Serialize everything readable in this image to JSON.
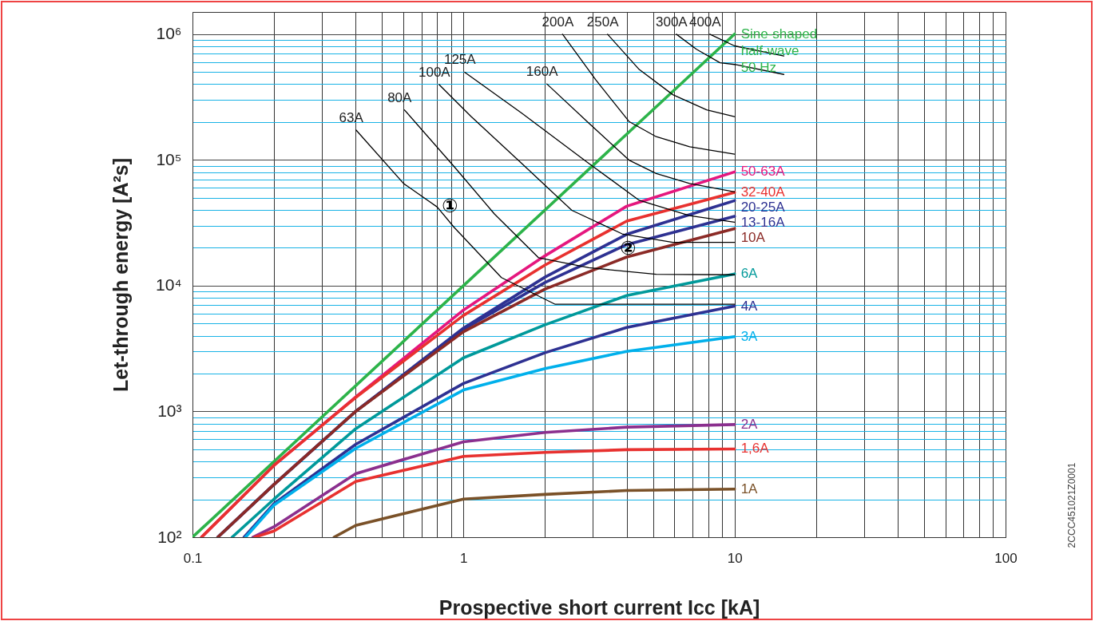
{
  "chart_data": {
    "type": "line",
    "xlabel": "Prospective short current Icc [kA]",
    "ylabel": "Let-through energy [A²s]",
    "log": "xy",
    "grid": true,
    "line_style": "solid",
    "marker": "none",
    "xlim": [
      0.1,
      100
    ],
    "ylim": [
      100,
      1500000
    ],
    "xticks": [
      0.1,
      {
        "value": 0.2,
        "label": null
      },
      {
        "value": 0.3,
        "label": null
      },
      {
        "value": 0.4,
        "label": null
      },
      {
        "value": 0.5,
        "label": null
      },
      {
        "value": 0.6,
        "label": null
      },
      {
        "value": 0.7,
        "label": null
      },
      {
        "value": 0.8,
        "label": null
      },
      {
        "value": 0.9,
        "label": null
      },
      1,
      {
        "value": 2,
        "label": null
      },
      {
        "value": 3,
        "label": null
      },
      {
        "value": 4,
        "label": null
      },
      {
        "value": 5,
        "label": null
      },
      {
        "value": 6,
        "label": null
      },
      {
        "value": 7,
        "label": null
      },
      {
        "value": 8,
        "label": null
      },
      {
        "value": 9,
        "label": null
      },
      10,
      {
        "value": 20,
        "label": null
      },
      {
        "value": 30,
        "label": null
      },
      {
        "value": 40,
        "label": null
      },
      {
        "value": 50,
        "label": null
      },
      {
        "value": 60,
        "label": null
      },
      {
        "value": 70,
        "label": null
      },
      {
        "value": 80,
        "label": null
      },
      {
        "value": 90,
        "label": null
      },
      100
    ],
    "yticks": [
      {
        "value": 100,
        "label": "10²"
      },
      {
        "value": 200,
        "label": null
      },
      {
        "value": 300,
        "label": null
      },
      {
        "value": 400,
        "label": null
      },
      {
        "value": 500,
        "label": null
      },
      {
        "value": 600,
        "label": null
      },
      {
        "value": 700,
        "label": null
      },
      {
        "value": 800,
        "label": null
      },
      {
        "value": 900,
        "label": null
      },
      {
        "value": 1000,
        "label": "10³"
      },
      {
        "value": 2000,
        "label": null
      },
      {
        "value": 3000,
        "label": null
      },
      {
        "value": 4000,
        "label": null
      },
      {
        "value": 5000,
        "label": null
      },
      {
        "value": 6000,
        "label": null
      },
      {
        "value": 7000,
        "label": null
      },
      {
        "value": 8000,
        "label": null
      },
      {
        "value": 9000,
        "label": null
      },
      {
        "value": 10000,
        "label": "10⁴"
      },
      {
        "value": 20000,
        "label": null
      },
      {
        "value": 30000,
        "label": null
      },
      {
        "value": 40000,
        "label": null
      },
      {
        "value": 50000,
        "label": null
      },
      {
        "value": 60000,
        "label": null
      },
      {
        "value": 70000,
        "label": null
      },
      {
        "value": 80000,
        "label": null
      },
      {
        "value": 90000,
        "label": null
      },
      {
        "value": 100000,
        "label": "10⁵"
      },
      {
        "value": 200000,
        "label": null
      },
      {
        "value": 300000,
        "label": null
      },
      {
        "value": 400000,
        "label": null
      },
      {
        "value": 500000,
        "label": null
      },
      {
        "value": 600000,
        "label": null
      },
      {
        "value": 700000,
        "label": null
      },
      {
        "value": 800000,
        "label": null
      },
      {
        "value": 900000,
        "label": null
      },
      {
        "value": 1000000,
        "label": "10⁶"
      }
    ],
    "series": [
      {
        "name": "Sine-shaped\nhalf-wave\n50 Hz",
        "color": "#2db34a",
        "x": [
          0.1,
          10
        ],
        "values": [
          100,
          1000000
        ]
      },
      {
        "name": "50-63A",
        "color": "#e5177e",
        "x": [
          0.108,
          0.2,
          0.4,
          1,
          2,
          4,
          10
        ],
        "values": [
          100,
          373,
          1300,
          6400,
          17300,
          42800,
          80200
        ]
      },
      {
        "name": "32-40A",
        "color": "#e8312f",
        "x": [
          0.108,
          0.2,
          0.4,
          1,
          2,
          4,
          10
        ],
        "values": [
          100,
          373,
          1290,
          5800,
          14600,
          32600,
          55100
        ]
      },
      {
        "name": "20-25A",
        "color": "#2e3192",
        "x": [
          0.124,
          0.2,
          0.4,
          1,
          2,
          4,
          10
        ],
        "values": [
          100,
          263,
          1000,
          4600,
          11700,
          25600,
          47400
        ]
      },
      {
        "name": "13-16A",
        "color": "#2e3192",
        "x": [
          0.124,
          0.2,
          0.4,
          1,
          2,
          4,
          10
        ],
        "values": [
          100,
          263,
          1000,
          4500,
          10600,
          21200,
          35600
        ]
      },
      {
        "name": "10A",
        "color": "#8b2a26",
        "x": [
          0.124,
          0.2,
          0.4,
          1,
          2,
          4,
          10
        ],
        "values": [
          100,
          263,
          1000,
          4300,
          9400,
          16900,
          28400
        ]
      },
      {
        "name": "6A",
        "color": "#00999a",
        "x": [
          0.14,
          0.2,
          0.4,
          1,
          2,
          4,
          10
        ],
        "values": [
          100,
          201,
          728,
          2670,
          4890,
          8340,
          12400
        ]
      },
      {
        "name": "4A",
        "color": "#2e3192",
        "x": [
          0.155,
          0.2,
          0.4,
          1,
          2,
          4,
          10
        ],
        "values": [
          100,
          185,
          547,
          1670,
          2930,
          4650,
          6870
        ]
      },
      {
        "name": "3A",
        "color": "#00b0eb",
        "x": [
          0.157,
          0.2,
          0.4,
          1,
          2,
          4,
          10
        ],
        "values": [
          100,
          180,
          508,
          1480,
          2190,
          3000,
          3930
        ]
      },
      {
        "name": "2A",
        "color": "#8b2f8e",
        "x": [
          0.167,
          0.2,
          0.4,
          1,
          2,
          4,
          10
        ],
        "values": [
          100,
          121,
          320,
          574,
          680,
          750,
          787
        ]
      },
      {
        "name": "1,6A",
        "color": "#e8312f",
        "x": [
          0.17,
          0.2,
          0.4,
          1,
          2,
          4,
          10
        ],
        "values": [
          100,
          112,
          277,
          439,
          472,
          496,
          503
        ]
      },
      {
        "name": "1A",
        "color": "#7a5128",
        "x": [
          0.333,
          0.4,
          1,
          2,
          4,
          10
        ],
        "values": [
          100,
          124,
          201,
          219,
          235,
          241
        ]
      },
      {
        "name": "63A",
        "color": "#000000",
        "x": [
          0.401,
          0.601,
          0.8,
          0.923,
          1.38,
          2.18,
          3.85,
          10
        ],
        "values": [
          173000,
          64900,
          42200,
          29100,
          11600,
          7110,
          7110,
          7110
        ]
      },
      {
        "name": "80A",
        "color": "#000000",
        "x": [
          0.605,
          0.925,
          1.3,
          1.89,
          2.9,
          5.14,
          10
        ],
        "values": [
          250000,
          88100,
          37200,
          16700,
          13900,
          12300,
          12200
        ]
      },
      {
        "name": "100A",
        "color": "#000000",
        "x": [
          0.813,
          1.067,
          1.64,
          2.51,
          3.85,
          5.92,
          10
        ],
        "values": [
          397000,
          221000,
          93700,
          39700,
          25800,
          22100,
          22100
        ]
      },
      {
        "name": "125A",
        "color": "#000000",
        "x": [
          1.01,
          1.64,
          2.9,
          4.45,
          6.82,
          10
        ],
        "values": [
          498000,
          235000,
          93700,
          47700,
          36100,
          32000
        ]
      },
      {
        "name": "160A",
        "color": "#000000",
        "x": [
          2.03,
          2.9,
          4.08,
          5.14,
          6.83,
          10
        ],
        "values": [
          402000,
          196000,
          99600,
          78000,
          64900,
          55600
        ]
      },
      {
        "name": "200A",
        "color": "#000000",
        "x": [
          2.32,
          3.07,
          4.08,
          5.14,
          6.83,
          10
        ],
        "values": [
          998000,
          435000,
          202000,
          153000,
          127000,
          111000
        ]
      },
      {
        "name": "250A",
        "color": "#000000",
        "x": [
          3.4,
          4.45,
          5.92,
          7.89,
          10
        ],
        "values": [
          998000,
          523000,
          330000,
          250000,
          221000
        ]
      },
      {
        "name": "300A",
        "color": "#000000",
        "x": [
          6.1,
          7.24,
          8.84,
          10,
          15.2
        ],
        "values": [
          998000,
          757000,
          592000,
          574000,
          478000
        ]
      },
      {
        "name": "400A",
        "color": "#000000",
        "x": [
          8.11,
          10,
          15.2
        ],
        "values": [
          998000,
          806000,
          670000
        ]
      }
    ],
    "annotations": [
      {
        "text": "①",
        "x": 0.8,
        "y": 42200
      },
      {
        "text": "②",
        "x": 3.63,
        "y": 19500
      },
      "2CCC451021Z0001"
    ]
  }
}
